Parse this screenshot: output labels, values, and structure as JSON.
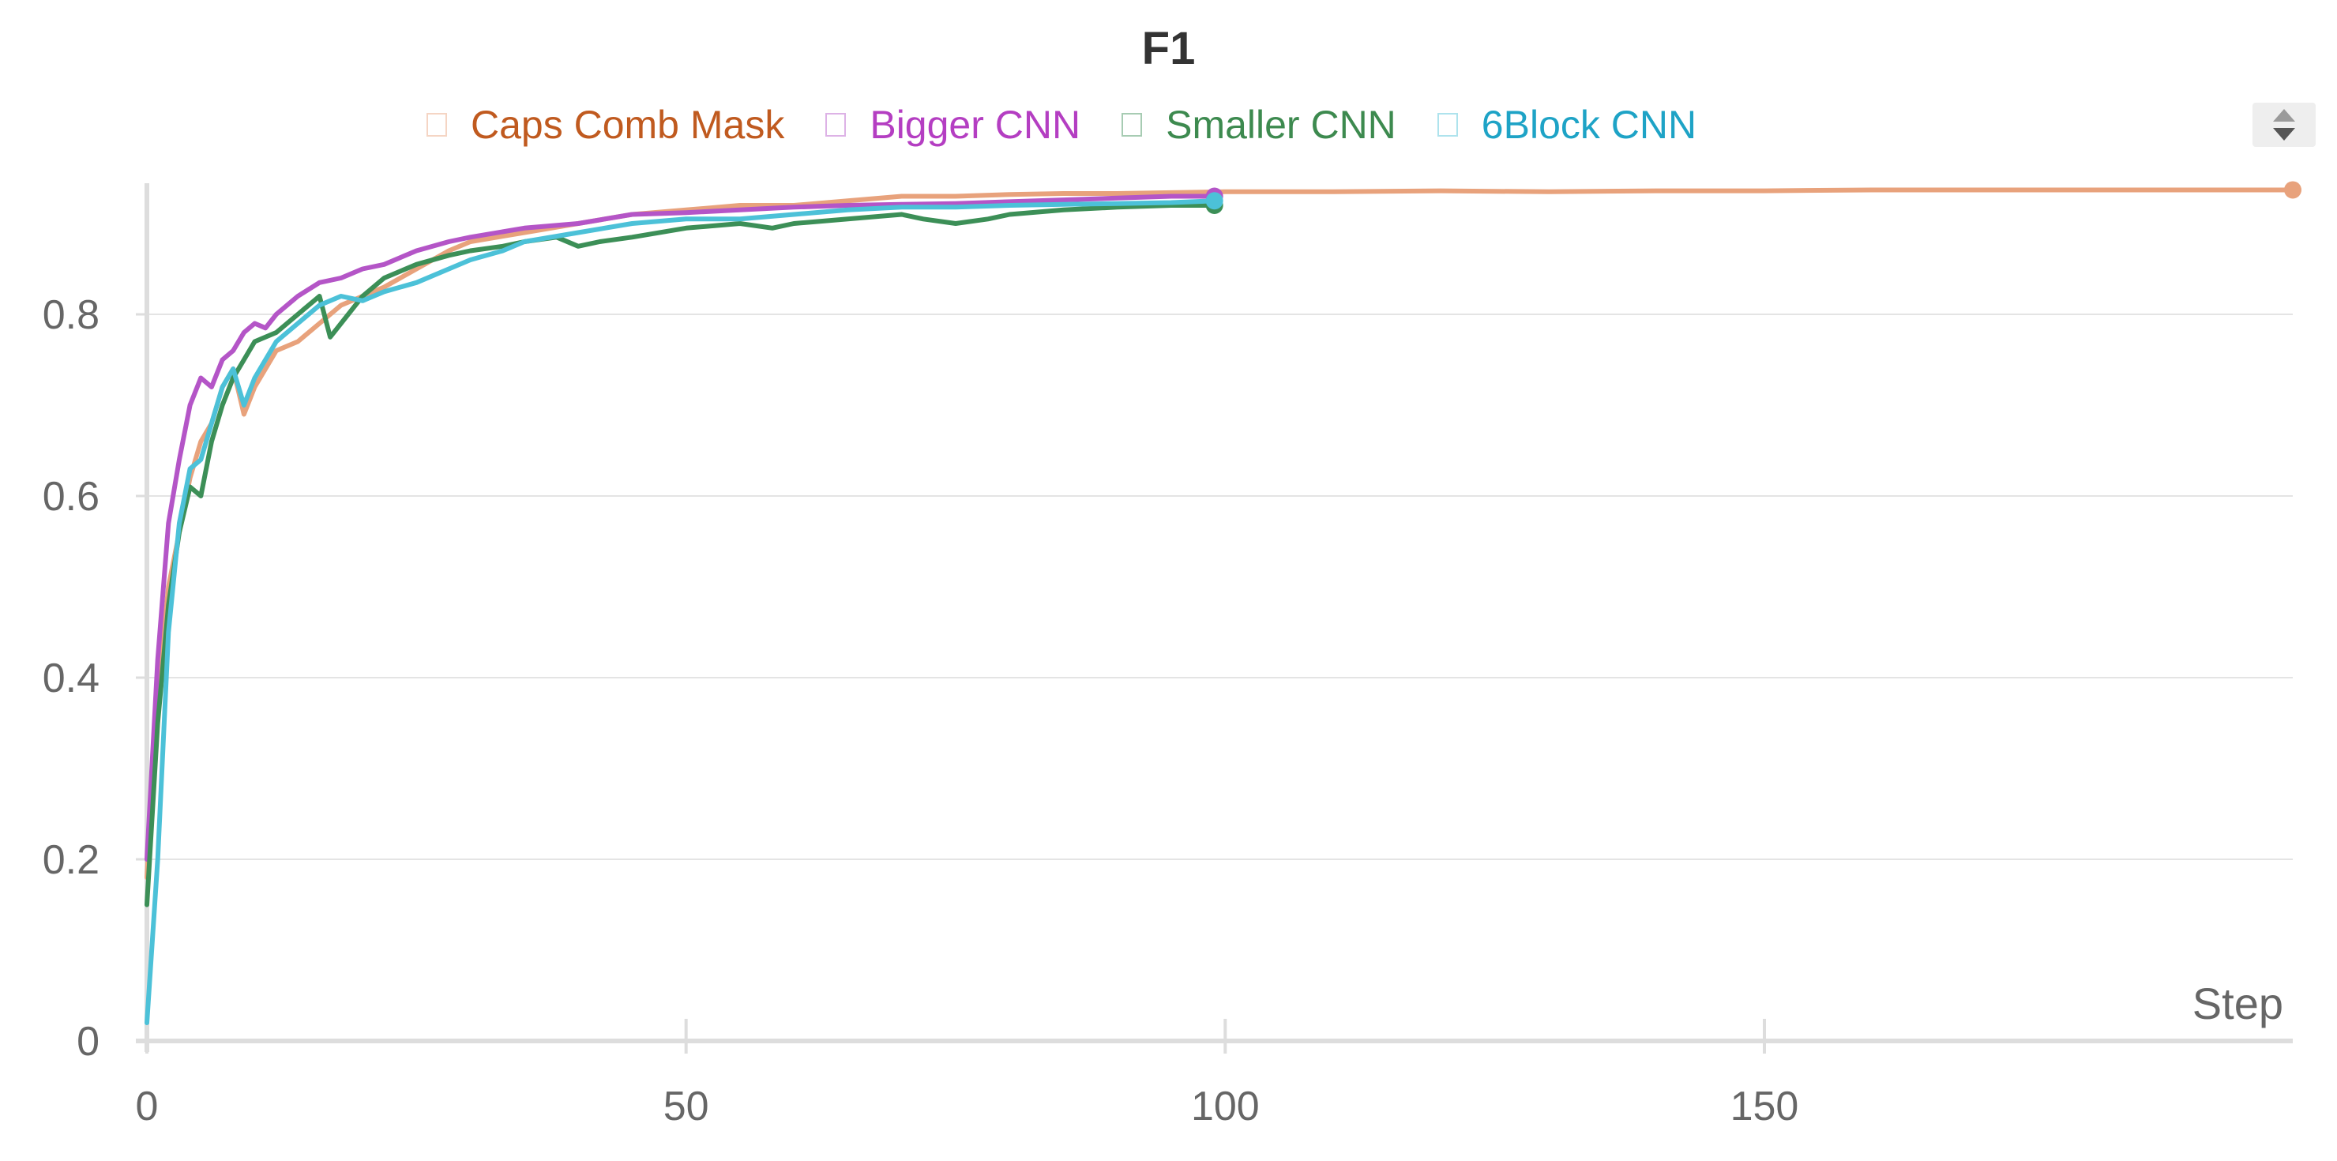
{
  "chart_data": {
    "type": "line",
    "title": "F1",
    "xlabel": "Step",
    "ylabel": "",
    "xlim": [
      0,
      199
    ],
    "ylim": [
      0,
      0.95
    ],
    "x_ticks": [
      0,
      50,
      100,
      150
    ],
    "y_ticks": [
      0,
      0.2,
      0.4,
      0.6,
      0.8
    ],
    "y_tick_labels": [
      "0",
      "0.2",
      "0.4",
      "0.6",
      "0.8"
    ],
    "grid": true,
    "legend_position": "top",
    "series": [
      {
        "name": "Caps Comb Mask",
        "color": "#e8a27c",
        "label_color": "#c05a1f",
        "points": [
          [
            0,
            0.18
          ],
          [
            1,
            0.38
          ],
          [
            2,
            0.5
          ],
          [
            3,
            0.56
          ],
          [
            4,
            0.62
          ],
          [
            5,
            0.66
          ],
          [
            6,
            0.68
          ],
          [
            7,
            0.72
          ],
          [
            8,
            0.74
          ],
          [
            9,
            0.69
          ],
          [
            10,
            0.72
          ],
          [
            12,
            0.76
          ],
          [
            14,
            0.77
          ],
          [
            16,
            0.79
          ],
          [
            18,
            0.81
          ],
          [
            20,
            0.82
          ],
          [
            22,
            0.83
          ],
          [
            25,
            0.85
          ],
          [
            28,
            0.87
          ],
          [
            30,
            0.88
          ],
          [
            35,
            0.89
          ],
          [
            40,
            0.9
          ],
          [
            45,
            0.91
          ],
          [
            50,
            0.915
          ],
          [
            55,
            0.92
          ],
          [
            60,
            0.92
          ],
          [
            65,
            0.925
          ],
          [
            70,
            0.93
          ],
          [
            75,
            0.93
          ],
          [
            80,
            0.932
          ],
          [
            85,
            0.933
          ],
          [
            90,
            0.933
          ],
          [
            95,
            0.934
          ],
          [
            100,
            0.935
          ],
          [
            110,
            0.935
          ],
          [
            120,
            0.936
          ],
          [
            130,
            0.935
          ],
          [
            140,
            0.936
          ],
          [
            150,
            0.936
          ],
          [
            160,
            0.937
          ],
          [
            170,
            0.937
          ],
          [
            180,
            0.937
          ],
          [
            190,
            0.937
          ],
          [
            199,
            0.937
          ]
        ]
      },
      {
        "name": "Bigger CNN",
        "color": "#b455c7",
        "label_color": "#b43ec2",
        "points": [
          [
            0,
            0.2
          ],
          [
            1,
            0.42
          ],
          [
            2,
            0.57
          ],
          [
            3,
            0.64
          ],
          [
            4,
            0.7
          ],
          [
            5,
            0.73
          ],
          [
            6,
            0.72
          ],
          [
            7,
            0.75
          ],
          [
            8,
            0.76
          ],
          [
            9,
            0.78
          ],
          [
            10,
            0.79
          ],
          [
            11,
            0.785
          ],
          [
            12,
            0.8
          ],
          [
            14,
            0.82
          ],
          [
            16,
            0.835
          ],
          [
            18,
            0.84
          ],
          [
            20,
            0.85
          ],
          [
            22,
            0.855
          ],
          [
            25,
            0.87
          ],
          [
            28,
            0.88
          ],
          [
            30,
            0.885
          ],
          [
            35,
            0.895
          ],
          [
            40,
            0.9
          ],
          [
            45,
            0.91
          ],
          [
            50,
            0.912
          ],
          [
            55,
            0.915
          ],
          [
            60,
            0.918
          ],
          [
            65,
            0.92
          ],
          [
            70,
            0.921
          ],
          [
            75,
            0.922
          ],
          [
            80,
            0.924
          ],
          [
            85,
            0.926
          ],
          [
            90,
            0.928
          ],
          [
            95,
            0.93
          ],
          [
            99,
            0.93
          ]
        ]
      },
      {
        "name": "Smaller CNN",
        "color": "#3c8f57",
        "label_color": "#3d8a4f",
        "points": [
          [
            0,
            0.15
          ],
          [
            1,
            0.35
          ],
          [
            2,
            0.48
          ],
          [
            3,
            0.56
          ],
          [
            4,
            0.61
          ],
          [
            5,
            0.6
          ],
          [
            6,
            0.66
          ],
          [
            7,
            0.7
          ],
          [
            8,
            0.73
          ],
          [
            9,
            0.75
          ],
          [
            10,
            0.77
          ],
          [
            12,
            0.78
          ],
          [
            14,
            0.8
          ],
          [
            16,
            0.82
          ],
          [
            17,
            0.775
          ],
          [
            18,
            0.79
          ],
          [
            20,
            0.82
          ],
          [
            22,
            0.84
          ],
          [
            25,
            0.855
          ],
          [
            28,
            0.865
          ],
          [
            30,
            0.87
          ],
          [
            33,
            0.875
          ],
          [
            35,
            0.88
          ],
          [
            38,
            0.885
          ],
          [
            40,
            0.875
          ],
          [
            42,
            0.88
          ],
          [
            45,
            0.885
          ],
          [
            50,
            0.895
          ],
          [
            55,
            0.9
          ],
          [
            58,
            0.895
          ],
          [
            60,
            0.9
          ],
          [
            65,
            0.905
          ],
          [
            70,
            0.91
          ],
          [
            72,
            0.905
          ],
          [
            75,
            0.9
          ],
          [
            78,
            0.905
          ],
          [
            80,
            0.91
          ],
          [
            85,
            0.915
          ],
          [
            90,
            0.918
          ],
          [
            95,
            0.92
          ],
          [
            99,
            0.92
          ]
        ]
      },
      {
        "name": "6Block CNN",
        "color": "#4cc1d8",
        "label_color": "#1ea3c6",
        "points": [
          [
            0,
            0.02
          ],
          [
            1,
            0.2
          ],
          [
            2,
            0.45
          ],
          [
            3,
            0.57
          ],
          [
            4,
            0.63
          ],
          [
            5,
            0.64
          ],
          [
            6,
            0.68
          ],
          [
            7,
            0.72
          ],
          [
            8,
            0.74
          ],
          [
            9,
            0.7
          ],
          [
            10,
            0.73
          ],
          [
            12,
            0.77
          ],
          [
            14,
            0.79
          ],
          [
            16,
            0.81
          ],
          [
            18,
            0.82
          ],
          [
            20,
            0.815
          ],
          [
            22,
            0.825
          ],
          [
            25,
            0.835
          ],
          [
            28,
            0.85
          ],
          [
            30,
            0.86
          ],
          [
            33,
            0.87
          ],
          [
            35,
            0.88
          ],
          [
            40,
            0.89
          ],
          [
            45,
            0.9
          ],
          [
            50,
            0.905
          ],
          [
            55,
            0.905
          ],
          [
            60,
            0.91
          ],
          [
            65,
            0.915
          ],
          [
            70,
            0.918
          ],
          [
            75,
            0.918
          ],
          [
            80,
            0.92
          ],
          [
            85,
            0.921
          ],
          [
            90,
            0.922
          ],
          [
            95,
            0.923
          ],
          [
            99,
            0.925
          ]
        ]
      }
    ]
  },
  "legend_scroll_icon": "sort-arrows-icon"
}
